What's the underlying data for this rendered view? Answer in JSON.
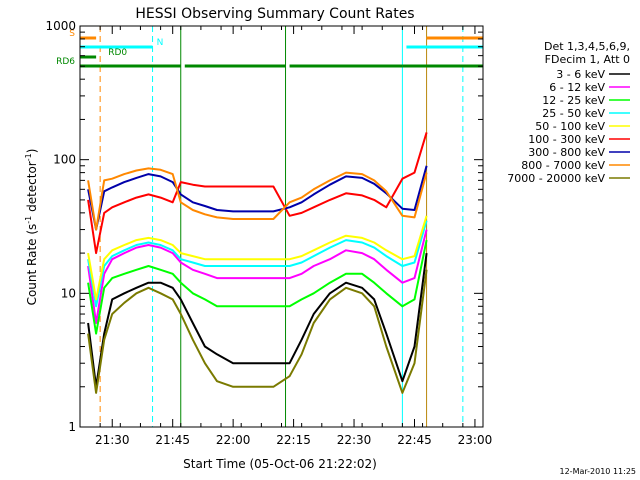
{
  "chart_data": {
    "type": "line",
    "title": "HESSI Observing Summary Count Rates",
    "xlabel": "Start Time (05-Oct-06 21:22:02)",
    "ylabel_main": "Count Rate (s",
    "ylabel_sup1": "-1",
    "ylabel_mid": " detector",
    "ylabel_sup2": "-1",
    "ylabel_end": ")",
    "yscale": "log",
    "xlim": [
      "21:22",
      "23:02"
    ],
    "ylim": [
      1,
      1000
    ],
    "x_ticks": [
      "21:30",
      "21:45",
      "22:00",
      "22:15",
      "22:30",
      "22:45",
      "23:00"
    ],
    "y_ticks": [
      "1",
      "10",
      "100",
      "1000"
    ],
    "grid": false,
    "legend_header": [
      "Det 1,3,4,5,6,9,",
      "FDecim 1, Att 0"
    ],
    "legend_position": "top-right",
    "series": [
      {
        "name": "3 - 6 keV",
        "color": "#000000",
        "times": [
          "21:24",
          "21:26",
          "21:28",
          "21:30",
          "21:33",
          "21:36",
          "21:39",
          "21:42",
          "21:45",
          "21:47",
          "21:50",
          "21:53",
          "21:56",
          "22:00",
          "22:05",
          "22:10",
          "22:14",
          "22:17",
          "22:20",
          "22:24",
          "22:28",
          "22:32",
          "22:35",
          "22:38",
          "22:42",
          "22:45",
          "22:48"
        ],
        "values": [
          6,
          2,
          5,
          9,
          10,
          11,
          12,
          12,
          11,
          9,
          6,
          4,
          3.5,
          3,
          3,
          3,
          3,
          4.5,
          7,
          10,
          12,
          11,
          9,
          5,
          2.2,
          4,
          20
        ]
      },
      {
        "name": "6 - 12 keV",
        "color": "#ff00ff",
        "times": [
          "21:24",
          "21:26",
          "21:28",
          "21:30",
          "21:33",
          "21:36",
          "21:39",
          "21:42",
          "21:45",
          "21:47",
          "21:50",
          "21:53",
          "21:56",
          "22:00",
          "22:05",
          "22:10",
          "22:14",
          "22:17",
          "22:20",
          "22:24",
          "22:28",
          "22:32",
          "22:35",
          "22:38",
          "22:42",
          "22:45",
          "22:48"
        ],
        "values": [
          16,
          6,
          14,
          18,
          20,
          22,
          23,
          22,
          20,
          17,
          15,
          14,
          13,
          13,
          13,
          13,
          13,
          14,
          16,
          18,
          21,
          20,
          18,
          15,
          12,
          13,
          30
        ]
      },
      {
        "name": "12 - 25 keV",
        "color": "#00ff00",
        "times": [
          "21:24",
          "21:26",
          "21:28",
          "21:30",
          "21:33",
          "21:36",
          "21:39",
          "21:42",
          "21:45",
          "21:47",
          "21:50",
          "21:53",
          "21:56",
          "22:00",
          "22:05",
          "22:10",
          "22:14",
          "22:17",
          "22:20",
          "22:24",
          "22:28",
          "22:32",
          "22:35",
          "22:38",
          "22:42",
          "22:45",
          "22:48"
        ],
        "values": [
          12,
          5,
          11,
          13,
          14,
          15,
          16,
          15,
          14,
          12,
          10,
          9,
          8,
          8,
          8,
          8,
          8,
          9,
          10,
          12,
          14,
          14,
          12,
          10,
          8,
          9,
          25
        ]
      },
      {
        "name": "25 - 50 keV",
        "color": "#00ffff",
        "times": [
          "21:24",
          "21:26",
          "21:28",
          "21:30",
          "21:33",
          "21:36",
          "21:39",
          "21:42",
          "21:45",
          "21:47",
          "21:50",
          "21:53",
          "21:56",
          "22:00",
          "22:05",
          "22:10",
          "22:14",
          "22:17",
          "22:20",
          "22:24",
          "22:28",
          "22:32",
          "22:35",
          "22:38",
          "22:42",
          "22:45",
          "22:48"
        ],
        "values": [
          18,
          8,
          16,
          19,
          21,
          23,
          24,
          23,
          21,
          18,
          17,
          16,
          16,
          16,
          16,
          16,
          16,
          17,
          19,
          22,
          25,
          24,
          22,
          19,
          16,
          17,
          35
        ]
      },
      {
        "name": "50 - 100 keV",
        "color": "#ffff00",
        "times": [
          "21:24",
          "21:26",
          "21:28",
          "21:30",
          "21:33",
          "21:36",
          "21:39",
          "21:42",
          "21:45",
          "21:47",
          "21:50",
          "21:53",
          "21:56",
          "22:00",
          "22:05",
          "22:10",
          "22:14",
          "22:17",
          "22:20",
          "22:24",
          "22:28",
          "22:32",
          "22:35",
          "22:38",
          "22:42",
          "22:45",
          "22:48"
        ],
        "values": [
          20,
          9,
          18,
          21,
          23,
          25,
          26,
          25,
          23,
          20,
          19,
          18,
          18,
          18,
          18,
          18,
          18,
          19,
          21,
          24,
          27,
          26,
          24,
          21,
          18,
          19,
          38
        ]
      },
      {
        "name": "100 - 300 keV",
        "color": "#ff0000",
        "times": [
          "21:24",
          "21:26",
          "21:28",
          "21:30",
          "21:33",
          "21:36",
          "21:39",
          "21:42",
          "21:45",
          "21:47",
          "21:50",
          "21:53",
          "21:56",
          "22:00",
          "22:05",
          "22:10",
          "22:14",
          "22:17",
          "22:20",
          "22:24",
          "22:28",
          "22:32",
          "22:35",
          "22:38",
          "22:42",
          "22:45",
          "22:48"
        ],
        "values": [
          50,
          20,
          40,
          44,
          48,
          52,
          55,
          52,
          48,
          68,
          65,
          63,
          63,
          63,
          63,
          63,
          38,
          40,
          44,
          50,
          56,
          54,
          50,
          44,
          72,
          80,
          160
        ]
      },
      {
        "name": "300 - 800 keV",
        "color": "#0000aa",
        "times": [
          "21:24",
          "21:26",
          "21:28",
          "21:30",
          "21:33",
          "21:36",
          "21:39",
          "21:42",
          "21:45",
          "21:47",
          "21:50",
          "21:53",
          "21:56",
          "22:00",
          "22:05",
          "22:10",
          "22:14",
          "22:17",
          "22:20",
          "22:24",
          "22:28",
          "22:32",
          "22:35",
          "22:38",
          "22:42",
          "22:45",
          "22:48"
        ],
        "values": [
          60,
          30,
          58,
          62,
          68,
          73,
          78,
          75,
          68,
          55,
          48,
          45,
          42,
          41,
          41,
          41,
          44,
          48,
          55,
          65,
          75,
          73,
          66,
          56,
          43,
          42,
          90
        ]
      },
      {
        "name": "800 - 7000 keV",
        "color": "#ff8800",
        "times": [
          "21:24",
          "21:26",
          "21:28",
          "21:30",
          "21:33",
          "21:36",
          "21:39",
          "21:42",
          "21:45",
          "21:47",
          "21:50",
          "21:53",
          "21:56",
          "22:00",
          "22:05",
          "22:10",
          "22:14",
          "22:17",
          "22:20",
          "22:24",
          "22:28",
          "22:32",
          "22:35",
          "22:38",
          "22:42",
          "22:45",
          "22:48"
        ],
        "values": [
          70,
          30,
          70,
          72,
          78,
          83,
          86,
          84,
          78,
          48,
          42,
          39,
          37,
          36,
          36,
          36,
          48,
          52,
          60,
          70,
          80,
          78,
          70,
          58,
          38,
          37,
          80
        ]
      },
      {
        "name": "7000 - 20000 keV",
        "color": "#7a7a00",
        "times": [
          "21:24",
          "21:26",
          "21:28",
          "21:30",
          "21:33",
          "21:36",
          "21:39",
          "21:42",
          "21:45",
          "21:47",
          "21:50",
          "21:53",
          "21:56",
          "22:00",
          "22:05",
          "22:10",
          "22:14",
          "22:17",
          "22:20",
          "22:24",
          "22:28",
          "22:32",
          "22:35",
          "22:38",
          "22:42",
          "22:45",
          "22:48"
        ],
        "values": [
          5,
          1.8,
          4.5,
          7,
          8.5,
          10,
          11,
          10,
          9,
          7,
          4.5,
          3,
          2.2,
          2,
          2,
          2,
          2.4,
          3.5,
          6,
          9,
          11,
          10,
          8,
          4,
          1.8,
          3,
          15
        ]
      }
    ],
    "markers": [
      {
        "label": "S",
        "color": "#ff8800",
        "segments": [
          [
            "21:22",
            "21:26"
          ],
          [
            "22:48",
            "23:02"
          ]
        ]
      },
      {
        "label": "N",
        "color": "#00ffff",
        "segments": [
          [
            "21:22",
            "21:40"
          ],
          [
            "22:43",
            "23:02"
          ]
        ]
      },
      {
        "label": "RD0",
        "color": "#008800",
        "segments": [
          [
            "21:22",
            "21:26"
          ]
        ]
      },
      {
        "label": "RD6",
        "color": "#008800",
        "segments": [
          [
            "21:22",
            "21:27"
          ],
          [
            "21:27",
            "21:47"
          ],
          [
            "21:48",
            "22:13"
          ],
          [
            "22:14",
            "22:42"
          ],
          [
            "22:42",
            "23:02"
          ]
        ]
      }
    ],
    "vlines": [
      {
        "time": "21:22",
        "color": "#008800",
        "style": "solid"
      },
      {
        "time": "21:27",
        "color": "#ff8800",
        "style": "dashed"
      },
      {
        "time": "21:40",
        "color": "#00ffff",
        "style": "dashed"
      },
      {
        "time": "21:47",
        "color": "#008800",
        "style": "solid"
      },
      {
        "time": "22:13",
        "color": "#008800",
        "style": "solid"
      },
      {
        "time": "22:42",
        "color": "#00ffff",
        "style": "solid"
      },
      {
        "time": "22:48",
        "color": "#b8860b",
        "style": "solid"
      },
      {
        "time": "22:57",
        "color": "#00ffff",
        "style": "dashed"
      }
    ]
  },
  "timestamp": "12-Mar-2010 11:25"
}
